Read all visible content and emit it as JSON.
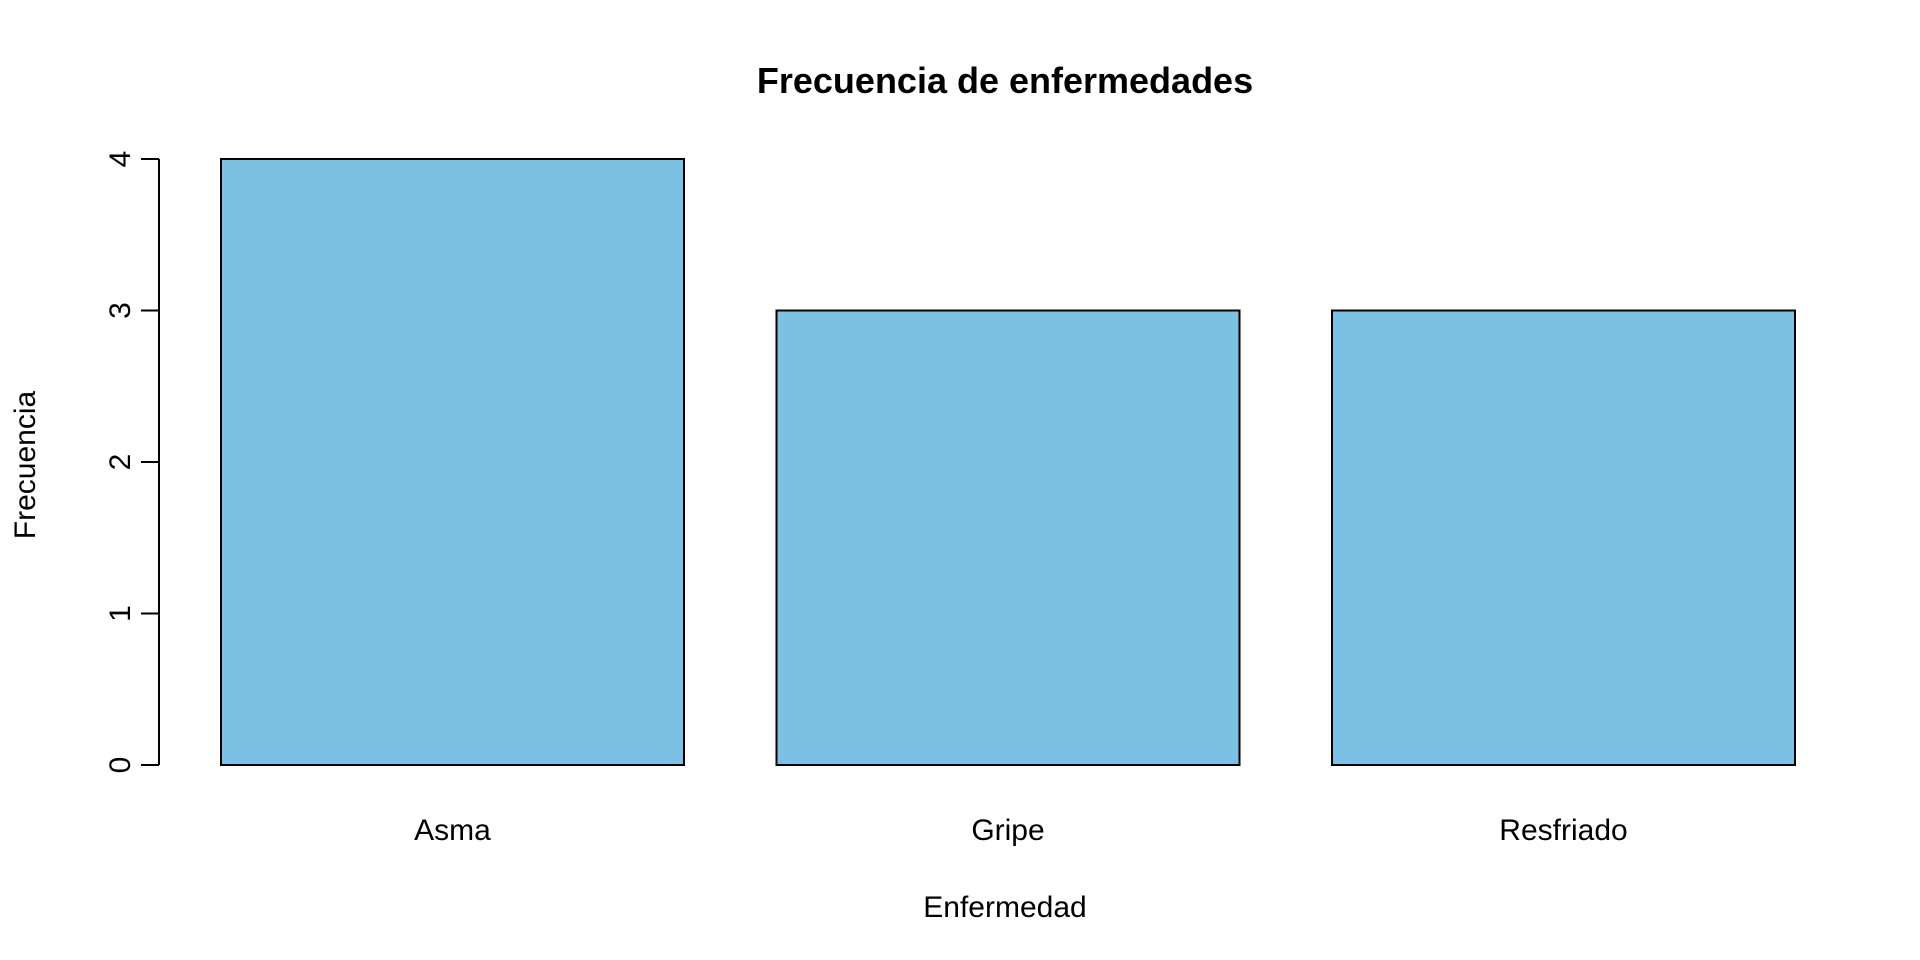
{
  "chart_data": {
    "type": "bar",
    "title": "Frecuencia de enfermedades",
    "xlabel": "Enfermedad",
    "ylabel": "Frecuencia",
    "categories": [
      "Asma",
      "Gripe",
      "Resfriado"
    ],
    "values": [
      4,
      3,
      3
    ],
    "ylim": [
      0,
      4
    ],
    "yticks": [
      "0",
      "1",
      "2",
      "3",
      "4"
    ],
    "grid": false,
    "legend": "none",
    "bar_color": "#7AC1E4",
    "edge_color": "#000000"
  }
}
